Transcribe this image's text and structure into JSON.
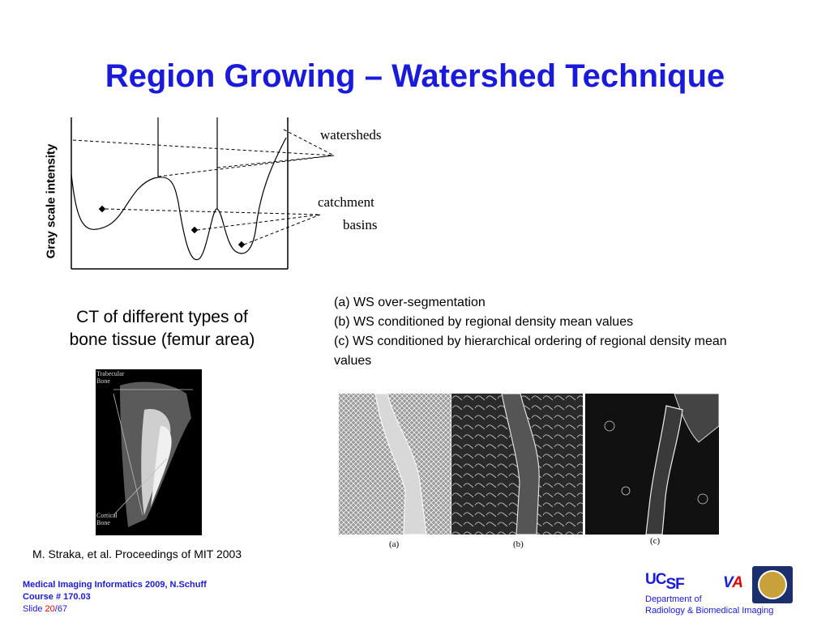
{
  "slide": {
    "title": "Region Growing – Watershed Technique"
  },
  "diagram": {
    "y_axis_label": "Gray scale intensity",
    "label_watersheds": "watersheds",
    "label_catchment": "catchment",
    "label_basins": "basins"
  },
  "ct": {
    "caption_line1": "CT of different types of",
    "caption_line2": "bone tissue (femur area)",
    "label_trabecular": "Trabecular",
    "label_bone1": "Bone",
    "label_cortical": "Cortical",
    "label_bone2": "Bone"
  },
  "ws_conditions": [
    "(a) WS over-segmentation",
    "(b) WS conditioned by regional density mean values",
    "(c) WS conditioned by hierarchical ordering of regional density mean",
    "values"
  ],
  "panels": {
    "a": "(a)",
    "b": "(b)",
    "c": "(c)"
  },
  "citation": "M. Straka,  et al. Proceedings of MIT 2003",
  "footer": {
    "line1": "Medical Imaging Informatics 2009, N.Schuff",
    "line2": "Course # 170.03",
    "slide_prefix": "Slide ",
    "slide_current": "20",
    "slide_total": "/67"
  },
  "logo": {
    "uc": "UC",
    "sf": "SF",
    "va_v": "V",
    "va_a": "A",
    "dept_line1": "Department of",
    "dept_line2": "Radiology & Biomedical Imaging"
  },
  "colors": {
    "title": "#1a1adb",
    "slide_number": "#e00000"
  }
}
